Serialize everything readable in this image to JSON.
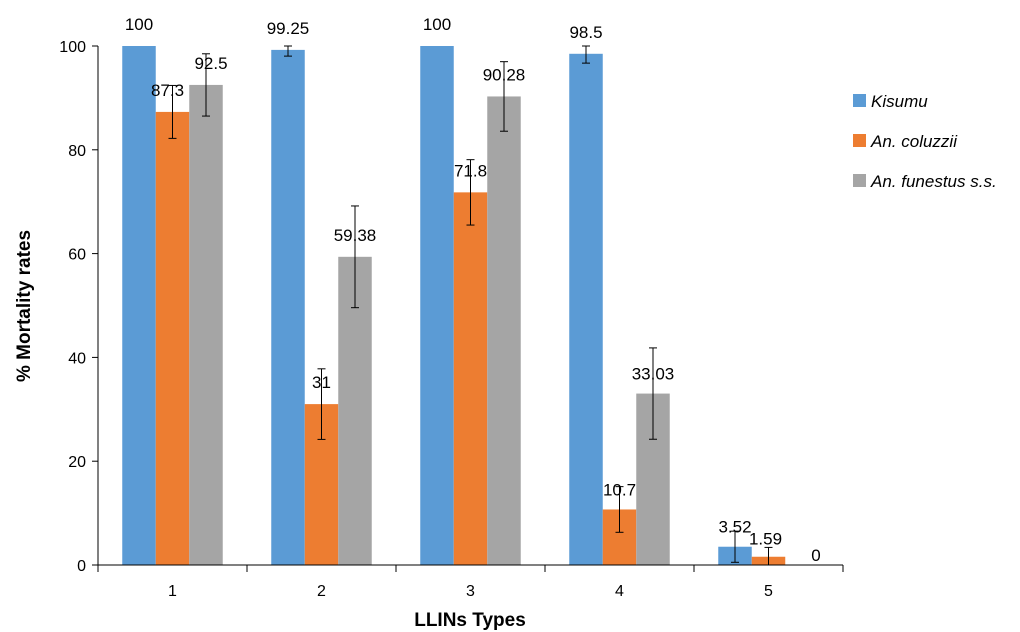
{
  "chart_data": {
    "type": "bar",
    "title": "",
    "xlabel": "LLINs Types",
    "ylabel": "% Mortality rates",
    "categories": [
      "1",
      "2",
      "3",
      "4",
      "5"
    ],
    "ylim": [
      0,
      100
    ],
    "yticks": [
      0,
      20,
      40,
      60,
      80,
      100
    ],
    "grid": false,
    "legend_position": "right",
    "series": [
      {
        "name": "Kisumu",
        "color": "#5b9bd5",
        "values": [
          100,
          99.25,
          100,
          98.5,
          3.52
        ],
        "labels": [
          "100",
          "99.25",
          "100",
          "98.5",
          "3.52"
        ],
        "error": [
          0,
          1.2,
          0,
          1.8,
          3.0
        ]
      },
      {
        "name": "An. coluzzii",
        "color": "#ed7d31",
        "values": [
          87.3,
          31,
          71.8,
          10.7,
          1.59
        ],
        "labels": [
          "87.3",
          "31",
          "71.8",
          "10.7",
          "1.59"
        ],
        "error": [
          5.1,
          6.8,
          6.3,
          4.4,
          1.8
        ]
      },
      {
        "name": "An. funestus s.s.",
        "color": "#a5a5a5",
        "values": [
          92.5,
          59.38,
          90.28,
          33.03,
          0
        ],
        "labels": [
          "92.5",
          "59.38",
          "90.28",
          "33.03",
          "0"
        ],
        "error": [
          6.0,
          9.8,
          6.7,
          8.8,
          0
        ]
      }
    ]
  }
}
